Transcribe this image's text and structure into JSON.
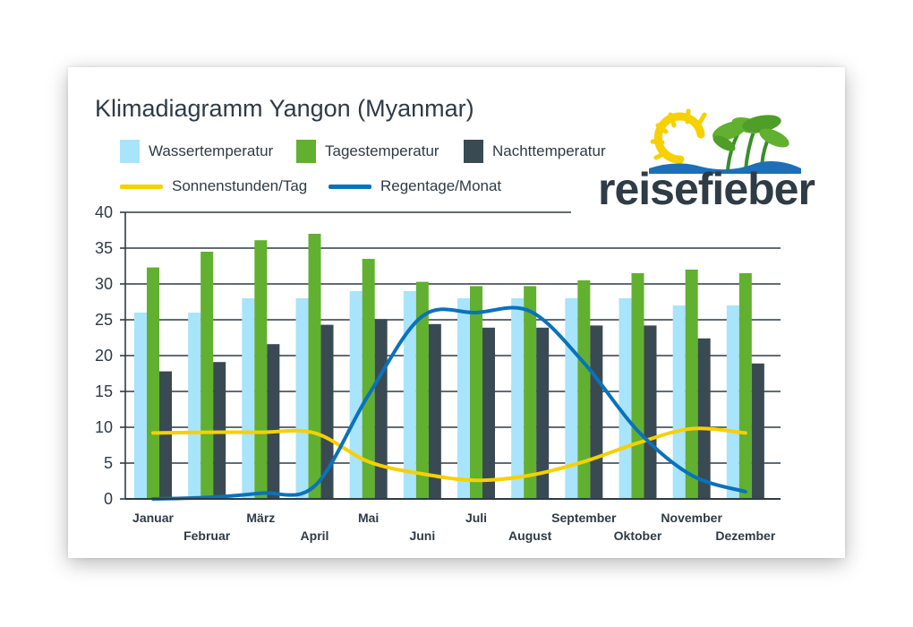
{
  "title": "Klimadiagramm Yangon (Myanmar)",
  "logo": {
    "text": "reisefieber"
  },
  "legend": {
    "wasser": "Wassertemperatur",
    "tag": "Tagestemperatur",
    "nacht": "Nachttemperatur",
    "sonne": "Sonnenstunden/Tag",
    "regen": "Regentage/Monat"
  },
  "colors": {
    "wasser": "#a8e4fb",
    "tag": "#62b02f",
    "nacht": "#3a4a52",
    "sonne": "#f7d000",
    "regen": "#0a72bb",
    "grid": "#2f3b45"
  },
  "chart_data": {
    "type": "bar",
    "title": "Klimadiagramm Yangon (Myanmar)",
    "ylim": [
      0,
      40
    ],
    "yticks": [
      0,
      5,
      10,
      15,
      20,
      25,
      30,
      35,
      40
    ],
    "grid": true,
    "legend_position": "top",
    "categories": [
      "Januar",
      "Februar",
      "März",
      "April",
      "Mai",
      "Juni",
      "Juli",
      "August",
      "September",
      "Oktober",
      "November",
      "Dezember"
    ],
    "series": [
      {
        "name": "Wassertemperatur",
        "type": "bar",
        "values": [
          26,
          26,
          28,
          28,
          29,
          29,
          28,
          28,
          28,
          28,
          27,
          27
        ]
      },
      {
        "name": "Tagestemperatur",
        "type": "bar",
        "values": [
          32.3,
          34.5,
          36.1,
          37,
          33.5,
          30.3,
          29.7,
          29.7,
          30.5,
          31.5,
          32,
          31.5
        ]
      },
      {
        "name": "Nachttemperatur",
        "type": "bar",
        "values": [
          17.8,
          19.1,
          21.6,
          24.3,
          25.1,
          24.4,
          23.9,
          23.9,
          24.2,
          24.2,
          22.4,
          18.9
        ]
      },
      {
        "name": "Sonnenstunden/Tag",
        "type": "line",
        "values": [
          9.2,
          9.3,
          9.3,
          9.2,
          5.2,
          3.5,
          2.6,
          3.3,
          5.2,
          7.8,
          9.8,
          9.2
        ]
      },
      {
        "name": "Regentage/Monat",
        "type": "line",
        "values": [
          0,
          0.2,
          0.8,
          1.8,
          14.5,
          25.5,
          26,
          26.2,
          19,
          9.5,
          3.3,
          1
        ]
      }
    ]
  }
}
